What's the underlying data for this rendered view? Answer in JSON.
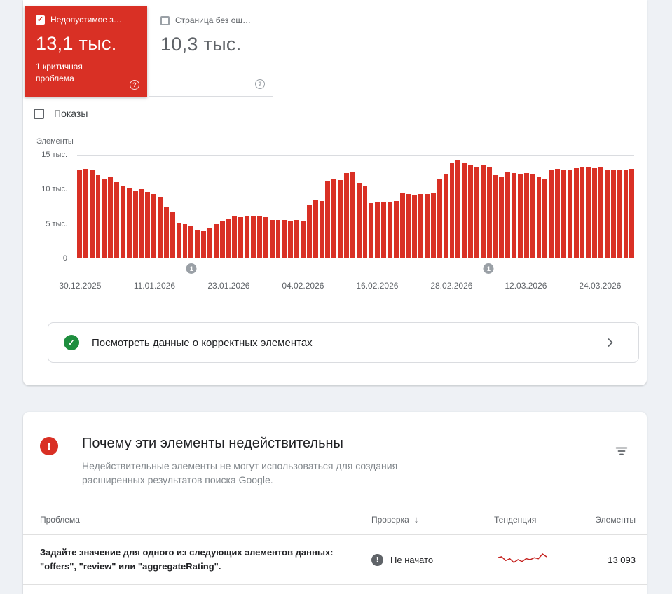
{
  "cards": {
    "invalid": {
      "label": "Недопустимое з…",
      "value": "13,1 тыс.",
      "subtitle": "1 критичная проблема",
      "checked": true,
      "color": "#d93025",
      "help_icon": "?"
    },
    "valid_pages": {
      "label": "Страница без ош…",
      "value": "10,3 тыс.",
      "checked": false,
      "help_icon": "?"
    }
  },
  "impressions_label": "Показы",
  "chart_data": {
    "type": "bar",
    "ylabel": "Элементы",
    "unit": "тыс.",
    "ymax": 15,
    "ylim": [
      0,
      15000
    ],
    "bar_color": "#d93025",
    "grid": "top-and-baseline",
    "y_ticks": [
      {
        "label": "15 тыс.",
        "pos": 0
      },
      {
        "label": "10 тыс.",
        "pos": 33.33
      },
      {
        "label": "5 тыс.",
        "pos": 66.67
      },
      {
        "label": "0",
        "pos": 100
      }
    ],
    "x_ticks": [
      {
        "label": "30.12.2025",
        "index": 0
      },
      {
        "label": "11.01.2026",
        "index": 12
      },
      {
        "label": "23.01.2026",
        "index": 24
      },
      {
        "label": "04.02.2026",
        "index": 36
      },
      {
        "label": "16.02.2026",
        "index": 48
      },
      {
        "label": "28.02.2026",
        "index": 60
      },
      {
        "label": "12.03.2026",
        "index": 72
      },
      {
        "label": "24.03.2026",
        "index": 84
      }
    ],
    "values": [
      12.9,
      13.1,
      12.9,
      12.1,
      11.6,
      11.8,
      11.1,
      10.5,
      10.3,
      9.9,
      10.1,
      9.7,
      9.4,
      8.9,
      7.4,
      6.8,
      5.1,
      4.9,
      4.6,
      4.1,
      3.9,
      4.4,
      4.9,
      5.4,
      5.8,
      6.1,
      6.0,
      6.2,
      6.1,
      6.2,
      6.0,
      5.6,
      5.5,
      5.6,
      5.4,
      5.5,
      5.3,
      7.7,
      8.4,
      8.3,
      11.3,
      11.6,
      11.4,
      12.4,
      12.6,
      11.0,
      10.6,
      8.0,
      8.1,
      8.2,
      8.2,
      8.3,
      9.5,
      9.3,
      9.2,
      9.4,
      9.3,
      9.5,
      11.6,
      12.2,
      13.9,
      14.3,
      14.0,
      13.6,
      13.4,
      13.7,
      13.4,
      12.1,
      11.9,
      12.6,
      12.4,
      12.3,
      12.4,
      12.2,
      11.9,
      11.5,
      12.9,
      13.0,
      12.9,
      12.8,
      13.2,
      13.3,
      13.4,
      13.2,
      13.3,
      12.9,
      12.8,
      12.9,
      12.8,
      13.0
    ],
    "markers": [
      {
        "label": "1",
        "index": 18
      },
      {
        "label": "1",
        "index": 66
      }
    ]
  },
  "valid_banner": {
    "text": "Посмотреть данные о корректных элементах"
  },
  "issues": {
    "title": "Почему эти элементы недействительны",
    "subtitle": "Недействительные элементы не могут использоваться для создания расширенных результатов поиска Google.",
    "columns": {
      "problem": "Проблема",
      "check": "Проверка",
      "trend": "Тенденция",
      "items": "Элементы"
    },
    "sort_arrow": "↓",
    "rows": [
      {
        "problem": "Задайте значение для одного из следующих элементов данных: \"offers\", \"review\" или \"aggregateRating\".",
        "status": "Не начато",
        "status_icon": "!",
        "items": "13 093",
        "trend": [
          12.9,
          13.0,
          12.6,
          12.8,
          12.4,
          12.7,
          12.5,
          12.8,
          12.7,
          12.9,
          12.8,
          13.3,
          13.0
        ],
        "trend_color": "#c5221f"
      }
    ]
  }
}
